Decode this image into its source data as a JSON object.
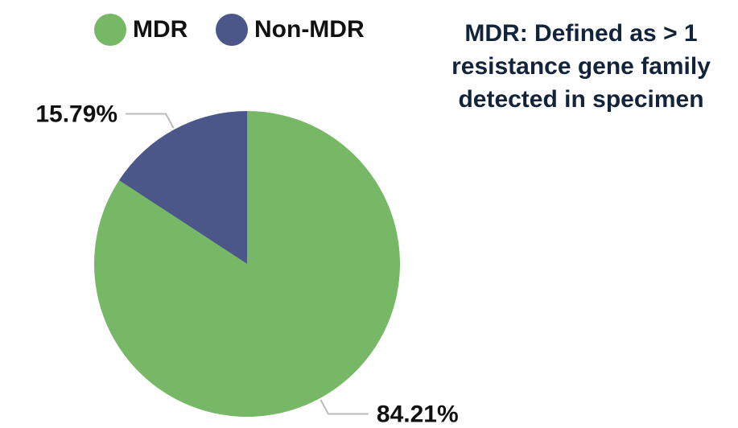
{
  "chart_data": {
    "type": "pie",
    "categories": [
      "MDR",
      "Non-MDR"
    ],
    "values": [
      84.21,
      15.79
    ],
    "value_labels": [
      "84.21%",
      "15.79%"
    ],
    "colors": [
      "#76b865",
      "#4a5788"
    ],
    "annotation": [
      "MDR: Defined as > 1",
      "resistance gene family",
      "detected in specimen"
    ],
    "legend": "top"
  }
}
